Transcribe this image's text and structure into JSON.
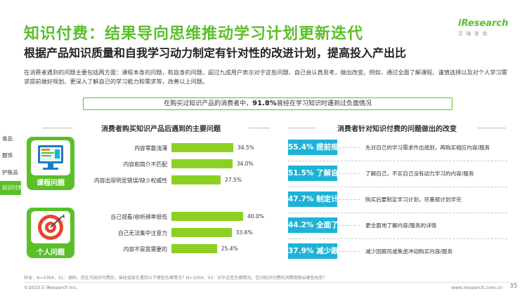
{
  "header": {
    "title": "知识付费：结果导向思维推动学习计划更新迭代",
    "subtitle": "根据产品知识质量和自我学习动力制定有针对性的改进计划，提高投入产出比",
    "logo_brand": "iResearch",
    "logo_cn": "艾瑞咨询",
    "description": "在消费者遇到的问题主要包括两方面：课程本身的问题，和自身的问题，超过九成用户表示对于这些问题，自己会认真思考，做出改变。例如，通过全面了解课程、谨慎选择以及对个人学习需求提前做好规划、更深入了解自己的学习能力和需求等，改善以上问题。"
  },
  "banner": {
    "prefix": "在购买过知识产品的消费者中，",
    "value": "91.8%",
    "suffix": "曾经在学习知识时遇到过负面情况"
  },
  "side_tabs": [
    "食品",
    "服饰",
    "护肤品",
    "知识付费"
  ],
  "active_tab": "知识付费",
  "left_section_title": "消费者购买知识产品后遇到的主要问题",
  "right_section_title": "消费者针对知识付费的问题做出的改变",
  "chart_data": [
    {
      "type": "bar",
      "title": "消费者购买知识产品后遇到的主要问题",
      "groups": [
        {
          "name": "课程问题",
          "categories": [
            "内容零散浅薄",
            "内容和简介不匹配",
            "内容出现明显错误/缺少权威性"
          ],
          "values": [
            34.5,
            34.0,
            27.5
          ],
          "labels": [
            "34.5%",
            "34.0%",
            "27.5%"
          ]
        },
        {
          "name": "个人问题",
          "categories": [
            "自己观看/收听频率很低",
            "自己无法集中注意力",
            "内容不是我需要的"
          ],
          "values": [
            40.0,
            33.6,
            25.4
          ],
          "labels": [
            "40.0%",
            "33.6%",
            "25.4%"
          ]
        }
      ],
      "xlim": [
        0,
        50
      ],
      "color": "#8dd024"
    },
    {
      "type": "table",
      "title": "消费者针对知识付费的问题做出的改变",
      "rows": [
        {
          "pct": "55.4%",
          "action": "提前规划",
          "text": "先对自己的学习需求作出规划，再购买相应内容/服务"
        },
        {
          "pct": "51.5%",
          "action": "了解自己",
          "text": "了解自己，不买自己没有动力学习的内容/服务"
        },
        {
          "pct": "47.7%",
          "action": "制定计划",
          "text": "购买后要制定学习计划，尽量按计划学完"
        },
        {
          "pct": "44.2%",
          "action": "全面了解",
          "text": "更全面地了解内容/服务的详情"
        },
        {
          "pct": "37.9%",
          "action": "减少跟风",
          "text": "减少因跟风或焦虑冲动购买内容/服务"
        }
      ],
      "color": "#1db3d6"
    }
  ],
  "footer": {
    "note": "样本：N=1094，X1：调研。您在为知识付费后，曾经或现在遇到以下哪些负面情况？N=1004，X2：对于这些负面情况，您对知识付费的消费观做出哪些改变？",
    "copyright": "©2023.5 iResearch Inc.",
    "website": "www.iresearch.com.cn",
    "page": "35"
  },
  "colors": {
    "accent_green": "#5bbf2a",
    "bar_green": "#8dd024",
    "teal": "#1db3d6"
  }
}
